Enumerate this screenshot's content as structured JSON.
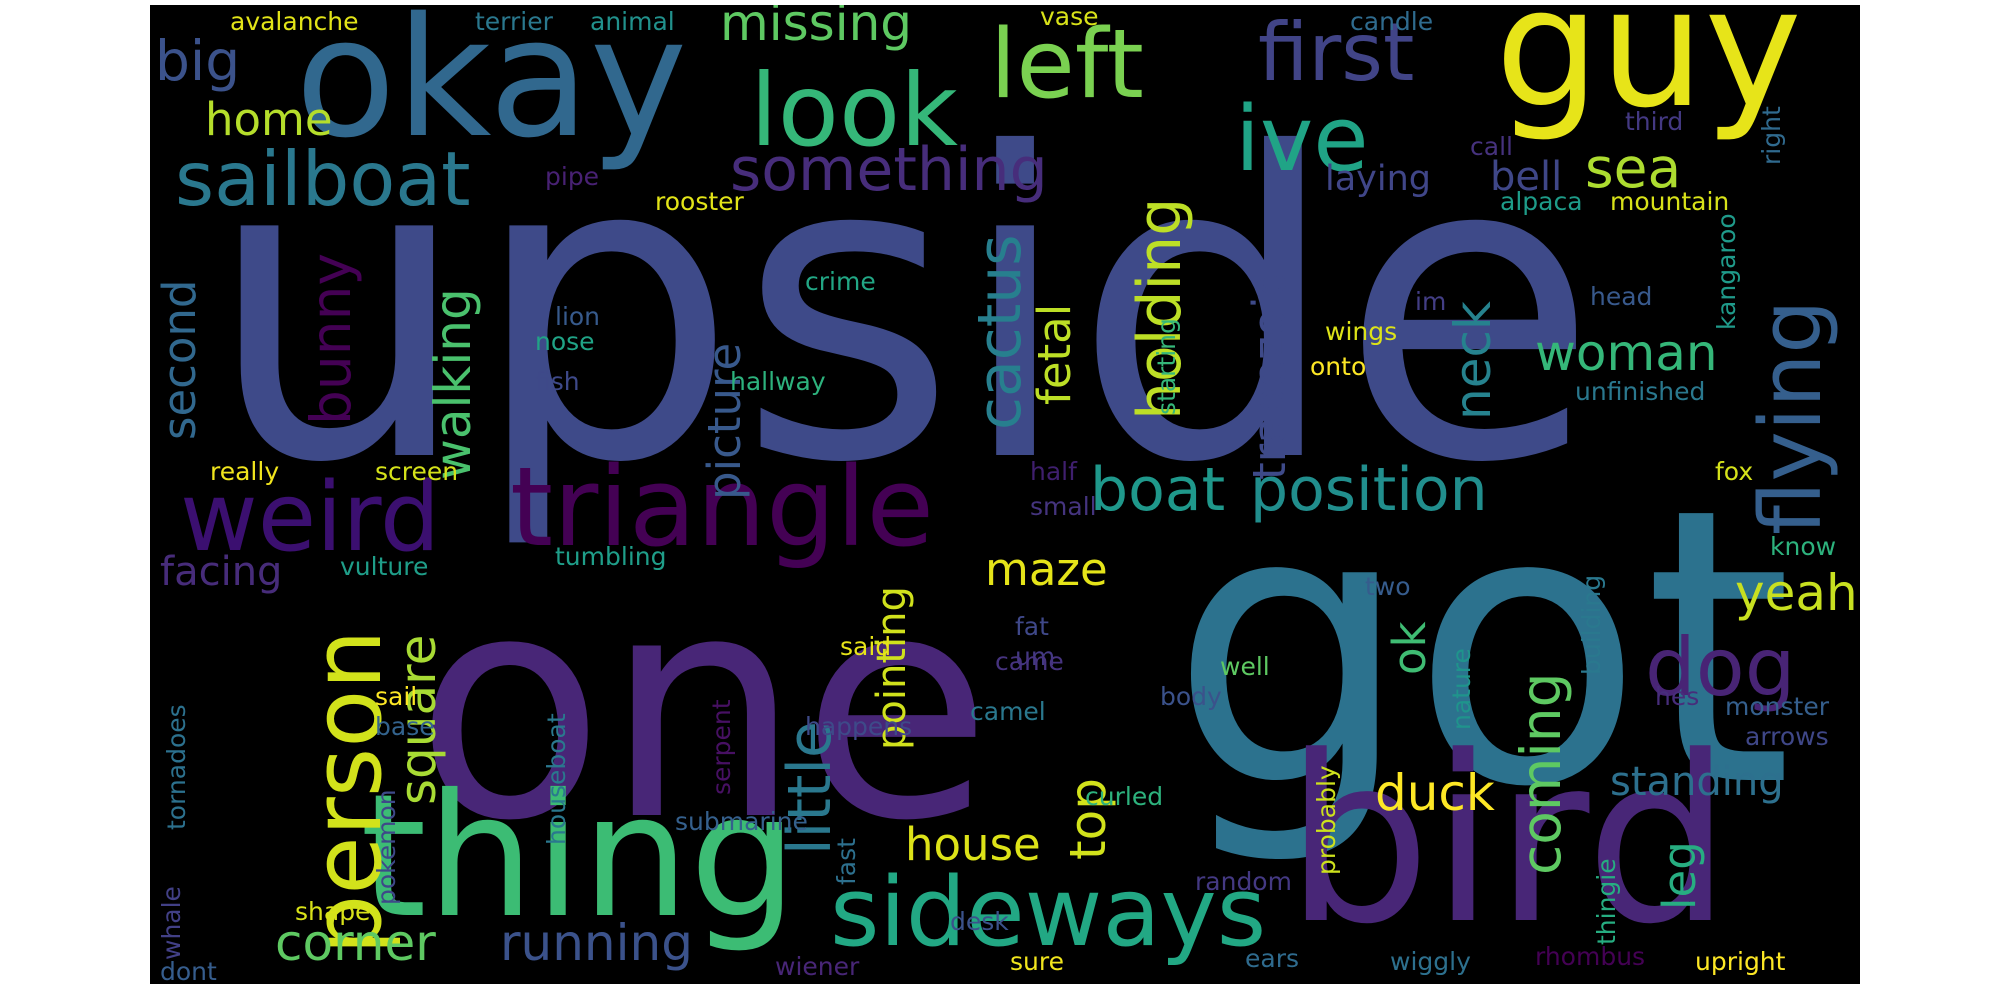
{
  "wordcloud": {
    "background": "#000000",
    "words": [
      {
        "text": "upside",
        "color": "#3e4a89"
      },
      {
        "text": "got",
        "color": "#2c728e"
      },
      {
        "text": "one",
        "color": "#482677"
      },
      {
        "text": "thing",
        "color": "#3cbc74"
      },
      {
        "text": "bird",
        "color": "#482677"
      },
      {
        "text": "okay",
        "color": "#31688e"
      },
      {
        "text": "guy",
        "color": "#e7e419"
      },
      {
        "text": "sideways",
        "color": "#22a884"
      },
      {
        "text": "person",
        "color": "#d2e21b"
      },
      {
        "text": "triangle",
        "color": "#440154"
      },
      {
        "text": "weird",
        "color": "#3b0f70"
      },
      {
        "text": "look",
        "color": "#35b779"
      },
      {
        "text": "left",
        "color": "#7ad151"
      },
      {
        "text": "first",
        "color": "#414487"
      },
      {
        "text": "ive",
        "color": "#20a486"
      },
      {
        "text": "sailboat",
        "color": "#2a788e"
      },
      {
        "text": "flying",
        "color": "#355f8d"
      },
      {
        "text": "something",
        "color": "#472d7b"
      },
      {
        "text": "dog",
        "color": "#482475"
      },
      {
        "text": "boat",
        "color": "#1f988b"
      },
      {
        "text": "position",
        "color": "#218e8d"
      },
      {
        "text": "cactus",
        "color": "#277f8e"
      },
      {
        "text": "holding",
        "color": "#bddf26"
      },
      {
        "text": "sea",
        "color": "#addc30"
      },
      {
        "text": "big",
        "color": "#3b528b"
      },
      {
        "text": "missing",
        "color": "#5ec962"
      },
      {
        "text": "home",
        "color": "#b5de2b"
      },
      {
        "text": "picture",
        "color": "#38598c"
      },
      {
        "text": "bunny",
        "color": "#440154"
      },
      {
        "text": "second",
        "color": "#31688e"
      },
      {
        "text": "walking",
        "color": "#4ac16d"
      },
      {
        "text": "little",
        "color": "#2a788e"
      },
      {
        "text": "square",
        "color": "#a8db34"
      },
      {
        "text": "coming",
        "color": "#5ec962"
      },
      {
        "text": "woman",
        "color": "#35b779"
      },
      {
        "text": "fetal",
        "color": "#bddf26"
      },
      {
        "text": "trapezoid",
        "color": "#3e4a89"
      },
      {
        "text": "neck",
        "color": "#26828e"
      },
      {
        "text": "top",
        "color": "#d2e21b"
      },
      {
        "text": "maze",
        "color": "#e5e419"
      },
      {
        "text": "yeah",
        "color": "#c8e020"
      },
      {
        "text": "duck",
        "color": "#fde725"
      },
      {
        "text": "leg",
        "color": "#27ad81"
      },
      {
        "text": "ok",
        "color": "#3fbc73"
      },
      {
        "text": "house",
        "color": "#dde318"
      },
      {
        "text": "corner",
        "color": "#5ec962"
      },
      {
        "text": "running",
        "color": "#3b528b"
      },
      {
        "text": "standing",
        "color": "#2d708e"
      },
      {
        "text": "pointing",
        "color": "#d0e11c"
      },
      {
        "text": "facing",
        "color": "#472c7a"
      },
      {
        "text": "bell",
        "color": "#3f4788"
      },
      {
        "text": "laying",
        "color": "#404688"
      },
      {
        "text": "vulture",
        "color": "#1f9e89"
      },
      {
        "text": "tumbling",
        "color": "#1f9e89"
      },
      {
        "text": "avalanche",
        "color": "#e2e418"
      },
      {
        "text": "terrier",
        "color": "#2a788e"
      },
      {
        "text": "animal",
        "color": "#21918c"
      },
      {
        "text": "vase",
        "color": "#d8e219"
      },
      {
        "text": "candle",
        "color": "#2f6b8e"
      },
      {
        "text": "third",
        "color": "#443983"
      },
      {
        "text": "right",
        "color": "#306a8e"
      },
      {
        "text": "call",
        "color": "#46327e"
      },
      {
        "text": "pipe",
        "color": "#482173"
      },
      {
        "text": "rooster",
        "color": "#e2e418"
      },
      {
        "text": "alpaca",
        "color": "#1e9c89"
      },
      {
        "text": "mountain",
        "color": "#d8e219"
      },
      {
        "text": "kangaroo",
        "color": "#1f9a8a"
      },
      {
        "text": "crime",
        "color": "#22a785"
      },
      {
        "text": "lion",
        "color": "#375a8c"
      },
      {
        "text": "nose",
        "color": "#20a386"
      },
      {
        "text": "fish",
        "color": "#3e4989"
      },
      {
        "text": "hallway",
        "color": "#2db27d"
      },
      {
        "text": "starting",
        "color": "#35b779"
      },
      {
        "text": "wings",
        "color": "#dde318"
      },
      {
        "text": "onto",
        "color": "#fde725"
      },
      {
        "text": "im",
        "color": "#433e85"
      },
      {
        "text": "head",
        "color": "#38598c"
      },
      {
        "text": "unfinished",
        "color": "#2a788e"
      },
      {
        "text": "really",
        "color": "#f1e51d"
      },
      {
        "text": "screen",
        "color": "#d5e21a"
      },
      {
        "text": "half",
        "color": "#3f1f6e"
      },
      {
        "text": "small",
        "color": "#45347f"
      },
      {
        "text": "fox",
        "color": "#d5e21a"
      },
      {
        "text": "know",
        "color": "#2db27d"
      },
      {
        "text": "fat",
        "color": "#3f4889"
      },
      {
        "text": "um",
        "color": "#443983"
      },
      {
        "text": "two",
        "color": "#365c8d"
      },
      {
        "text": "building",
        "color": "#2a788e"
      },
      {
        "text": "nature",
        "color": "#1f948c"
      },
      {
        "text": "said",
        "color": "#e7e419"
      },
      {
        "text": "came",
        "color": "#46337f"
      },
      {
        "text": "well",
        "color": "#5ec962"
      },
      {
        "text": "body",
        "color": "#3b528b"
      },
      {
        "text": "hes",
        "color": "#472d7b"
      },
      {
        "text": "monster",
        "color": "#355f8d"
      },
      {
        "text": "arrows",
        "color": "#3f4788"
      },
      {
        "text": "sail",
        "color": "#fde725"
      },
      {
        "text": "base",
        "color": "#33638d"
      },
      {
        "text": "camel",
        "color": "#2a788e"
      },
      {
        "text": "happens",
        "color": "#3e4a89"
      },
      {
        "text": "serpent",
        "color": "#471063"
      },
      {
        "text": "houseboat",
        "color": "#2a788e"
      },
      {
        "text": "tornadoes",
        "color": "#2c718e"
      },
      {
        "text": "curled",
        "color": "#2db27d"
      },
      {
        "text": "probably",
        "color": "#cde11d"
      },
      {
        "text": "submarine",
        "color": "#35608d"
      },
      {
        "text": "fast",
        "color": "#2d708e"
      },
      {
        "text": "pokemon",
        "color": "#3e4989"
      },
      {
        "text": "shape",
        "color": "#d8e219"
      },
      {
        "text": "whale",
        "color": "#424086"
      },
      {
        "text": "thingie",
        "color": "#26ad81"
      },
      {
        "text": "random",
        "color": "#443983"
      },
      {
        "text": "desk",
        "color": "#3b528b"
      },
      {
        "text": "dont",
        "color": "#365d8d"
      },
      {
        "text": "wiener",
        "color": "#482677"
      },
      {
        "text": "sure",
        "color": "#f1e51d"
      },
      {
        "text": "ears",
        "color": "#2f6b8e"
      },
      {
        "text": "wiggly",
        "color": "#2d708e"
      },
      {
        "text": "rhombus",
        "color": "#440154"
      },
      {
        "text": "upright",
        "color": "#fde725"
      }
    ]
  }
}
